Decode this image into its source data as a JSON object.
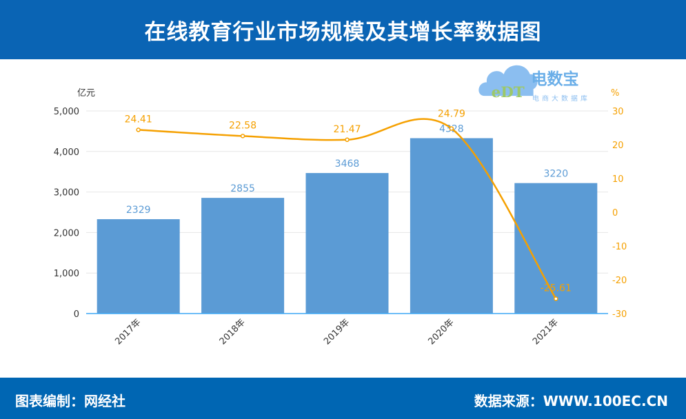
{
  "header": {
    "title": "在线教育行业市场规模及其增长率数据图"
  },
  "footer": {
    "compiled_by": "图表编制：网经社",
    "source": "数据来源：WWW.100EC.CN"
  },
  "logo": {
    "text": "电数宝",
    "subtitle": "电商大数据库",
    "mark": "eDT"
  },
  "colors": {
    "bar": "#5b9bd5",
    "line": "#f5a000",
    "header": "#0a64b4",
    "footer": "#0066b3"
  },
  "chart_data": {
    "type": "bar+line",
    "categories": [
      "2017年",
      "2018年",
      "2019年",
      "2020年",
      "2021年"
    ],
    "series": [
      {
        "type": "bar",
        "axis": "left",
        "values": [
          2329,
          2855,
          3468,
          4328,
          3220
        ]
      },
      {
        "type": "line",
        "axis": "right",
        "smooth": true,
        "values": [
          24.41,
          22.58,
          21.47,
          24.79,
          -25.61
        ]
      }
    ],
    "left_axis": {
      "unit": "亿元",
      "ylim": [
        0,
        5000
      ],
      "ticks": [
        "0",
        "1,000",
        "2,000",
        "3,000",
        "4,000",
        "5,000"
      ]
    },
    "right_axis": {
      "unit": "%",
      "ylim": [
        -30,
        30
      ],
      "ticks": [
        "-30",
        "-20",
        "-10",
        "0",
        "10",
        "20",
        "30"
      ]
    },
    "grid": true,
    "legend": "none"
  }
}
